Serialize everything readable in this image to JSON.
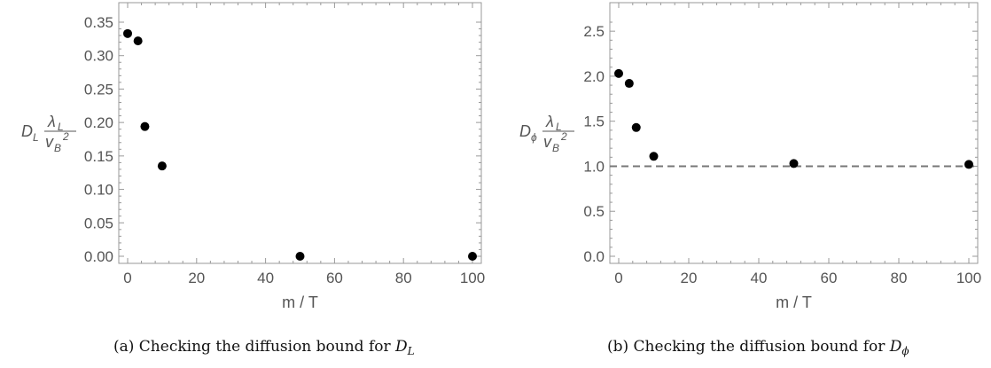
{
  "chart_data": [
    {
      "type": "scatter",
      "xlabel": "m / T",
      "ylabel": {
        "D": "D",
        "D_sub": "L",
        "lambda": "λ",
        "lambda_sub": "L",
        "v": "v",
        "v_sub": "B",
        "v_pow": "2"
      },
      "xlim": [
        0,
        100
      ],
      "ylim": [
        0,
        0.35
      ],
      "xticks": [
        0,
        20,
        40,
        60,
        80,
        100
      ],
      "xtick_labels": [
        "0",
        "20",
        "40",
        "60",
        "80",
        "100"
      ],
      "yticks": [
        0,
        0.05,
        0.1,
        0.15,
        0.2,
        0.25,
        0.3,
        0.35
      ],
      "ytick_labels": [
        "0.00",
        "0.05",
        "0.10",
        "0.15",
        "0.20",
        "0.25",
        "0.30",
        "0.35"
      ],
      "points": [
        {
          "x": 0,
          "y": 0.333
        },
        {
          "x": 3,
          "y": 0.322
        },
        {
          "x": 5,
          "y": 0.194
        },
        {
          "x": 10,
          "y": 0.135
        },
        {
          "x": 50,
          "y": 0.0
        },
        {
          "x": 100,
          "y": 0.0
        }
      ],
      "reference_line": null,
      "caption_prefix": "(a)  Checking the diffusion bound for ",
      "caption_math": "D",
      "caption_math_sub": "L"
    },
    {
      "type": "scatter",
      "xlabel": "m / T",
      "ylabel": {
        "D": "D",
        "D_sub": "ϕ",
        "lambda": "λ",
        "lambda_sub": "L",
        "v": "v",
        "v_sub": "B",
        "v_pow": "2"
      },
      "xlim": [
        0,
        100
      ],
      "ylim": [
        0,
        2.6
      ],
      "xticks": [
        0,
        20,
        40,
        60,
        80,
        100
      ],
      "xtick_labels": [
        "0",
        "20",
        "40",
        "60",
        "80",
        "100"
      ],
      "yticks": [
        0,
        0.5,
        1.0,
        1.5,
        2.0,
        2.5
      ],
      "ytick_labels": [
        "0.0",
        "0.5",
        "1.0",
        "1.5",
        "2.0",
        "2.5"
      ],
      "points": [
        {
          "x": 0,
          "y": 2.03
        },
        {
          "x": 3,
          "y": 1.92
        },
        {
          "x": 5,
          "y": 1.43
        },
        {
          "x": 10,
          "y": 1.11
        },
        {
          "x": 50,
          "y": 1.03
        },
        {
          "x": 100,
          "y": 1.02
        }
      ],
      "reference_line": {
        "y": 1.0,
        "style": "dashed",
        "color": "#777777"
      },
      "caption_prefix": "(b)  Checking the diffusion bound for ",
      "caption_math": "D",
      "caption_math_sub": "ϕ"
    }
  ],
  "colors": {
    "axis": "#999999",
    "text": "#555555",
    "marker": "#000000"
  }
}
